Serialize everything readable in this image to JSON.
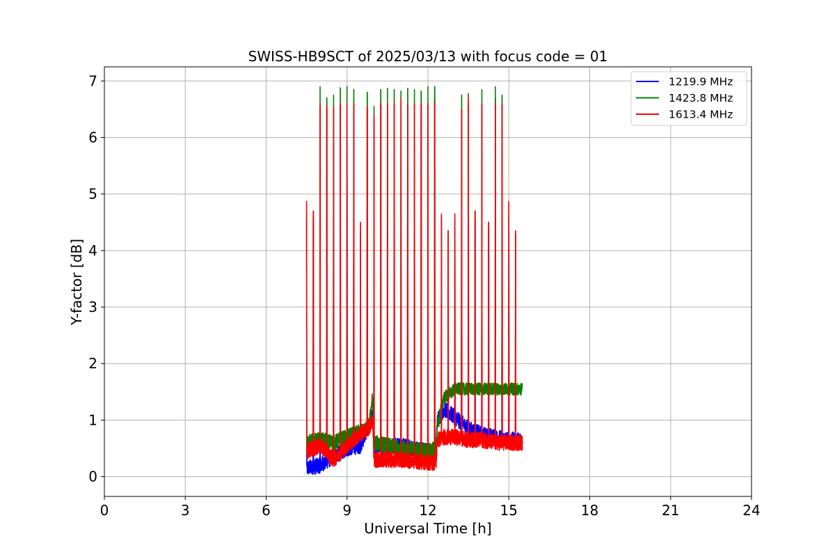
{
  "chart_data": {
    "type": "line",
    "title": "SWISS-HB9SCT of 2025/03/13 with focus code = 01",
    "xlabel": "Universal Time [h]",
    "ylabel": "Y-factor [dB]",
    "xlim": [
      0,
      24
    ],
    "ylim": [
      -0.35,
      7.25
    ],
    "xticks": [
      0,
      3,
      6,
      9,
      12,
      15,
      18,
      21,
      24
    ],
    "yticks": [
      0,
      1,
      2,
      3,
      4,
      5,
      6,
      7
    ],
    "grid": true,
    "legend_position": "top-right",
    "bursts_t": [
      7.5,
      7.75,
      8.0,
      8.25,
      8.5,
      8.75,
      9.0,
      9.25,
      9.5,
      9.75,
      10.0,
      10.25,
      10.5,
      10.75,
      11.0,
      11.25,
      11.5,
      11.75,
      12.0,
      12.25,
      12.5,
      12.75,
      13.0,
      13.25,
      13.5,
      13.75,
      14.0,
      14.25,
      14.5,
      14.75,
      15.0,
      15.25
    ],
    "series": [
      {
        "name": "1219.9 MHz",
        "color": "#0000ff",
        "baseline": [
          [
            7.5,
            0.15
          ],
          [
            8.0,
            0.2
          ],
          [
            8.5,
            0.35
          ],
          [
            9.0,
            0.5
          ],
          [
            9.5,
            0.55
          ],
          [
            9.8,
            0.9
          ],
          [
            9.95,
            1.05
          ],
          [
            10.0,
            0.55
          ],
          [
            11.0,
            0.55
          ],
          [
            12.0,
            0.45
          ],
          [
            12.3,
            0.45
          ],
          [
            12.35,
            1.0
          ],
          [
            12.6,
            1.2
          ],
          [
            13.0,
            1.05
          ],
          [
            13.5,
            0.85
          ],
          [
            14.0,
            0.75
          ],
          [
            14.5,
            0.7
          ],
          [
            15.0,
            0.65
          ],
          [
            15.5,
            0.65
          ]
        ],
        "bursts": [
          4.5,
          4.5,
          6.5,
          6.5,
          6.5,
          6.6,
          6.7,
          6.6,
          4.3,
          6.5,
          6.3,
          6.6,
          6.6,
          6.6,
          6.6,
          6.6,
          6.6,
          6.6,
          6.6,
          6.7,
          4.5,
          4.2,
          4.5,
          6.5,
          6.6,
          4.5,
          6.6,
          4.4,
          6.7,
          6.6,
          4.6,
          3.6
        ]
      },
      {
        "name": "1423.8 MHz",
        "color": "#008000",
        "baseline": [
          [
            7.5,
            0.6
          ],
          [
            8.0,
            0.65
          ],
          [
            8.5,
            0.6
          ],
          [
            9.0,
            0.7
          ],
          [
            9.5,
            0.8
          ],
          [
            9.8,
            0.85
          ],
          [
            9.95,
            1.4
          ],
          [
            10.0,
            0.6
          ],
          [
            11.0,
            0.5
          ],
          [
            12.0,
            0.45
          ],
          [
            12.3,
            0.5
          ],
          [
            12.35,
            0.9
          ],
          [
            12.6,
            1.4
          ],
          [
            13.0,
            1.55
          ],
          [
            13.5,
            1.55
          ],
          [
            14.0,
            1.55
          ],
          [
            14.5,
            1.55
          ],
          [
            15.0,
            1.55
          ],
          [
            15.5,
            1.55
          ]
        ],
        "bursts": [
          4.7,
          4.6,
          6.9,
          6.7,
          6.75,
          6.88,
          6.9,
          6.85,
          4.5,
          6.8,
          6.55,
          6.85,
          6.87,
          6.85,
          6.82,
          6.87,
          6.85,
          6.82,
          6.9,
          6.9,
          4.6,
          4.35,
          4.6,
          6.75,
          6.78,
          4.7,
          6.85,
          4.5,
          6.9,
          6.75,
          4.85,
          4.3
        ]
      },
      {
        "name": "1613.4 MHz",
        "color": "#ff0000",
        "baseline": [
          [
            7.5,
            0.45
          ],
          [
            8.0,
            0.55
          ],
          [
            8.5,
            0.3
          ],
          [
            9.0,
            0.55
          ],
          [
            9.5,
            0.75
          ],
          [
            9.8,
            0.85
          ],
          [
            9.95,
            1.0
          ],
          [
            10.0,
            0.3
          ],
          [
            11.0,
            0.3
          ],
          [
            12.0,
            0.25
          ],
          [
            12.3,
            0.25
          ],
          [
            12.35,
            0.65
          ],
          [
            12.6,
            0.7
          ],
          [
            13.0,
            0.7
          ],
          [
            13.5,
            0.65
          ],
          [
            14.0,
            0.65
          ],
          [
            14.5,
            0.6
          ],
          [
            15.0,
            0.6
          ],
          [
            15.5,
            0.6
          ]
        ],
        "bursts": [
          4.88,
          4.7,
          6.6,
          6.55,
          6.55,
          6.6,
          6.6,
          6.6,
          4.5,
          6.55,
          6.4,
          6.6,
          6.6,
          6.6,
          6.7,
          6.6,
          6.6,
          6.6,
          6.6,
          6.6,
          4.65,
          4.35,
          4.65,
          6.5,
          6.7,
          4.7,
          6.6,
          4.5,
          6.6,
          6.6,
          4.87,
          4.35
        ]
      }
    ]
  }
}
